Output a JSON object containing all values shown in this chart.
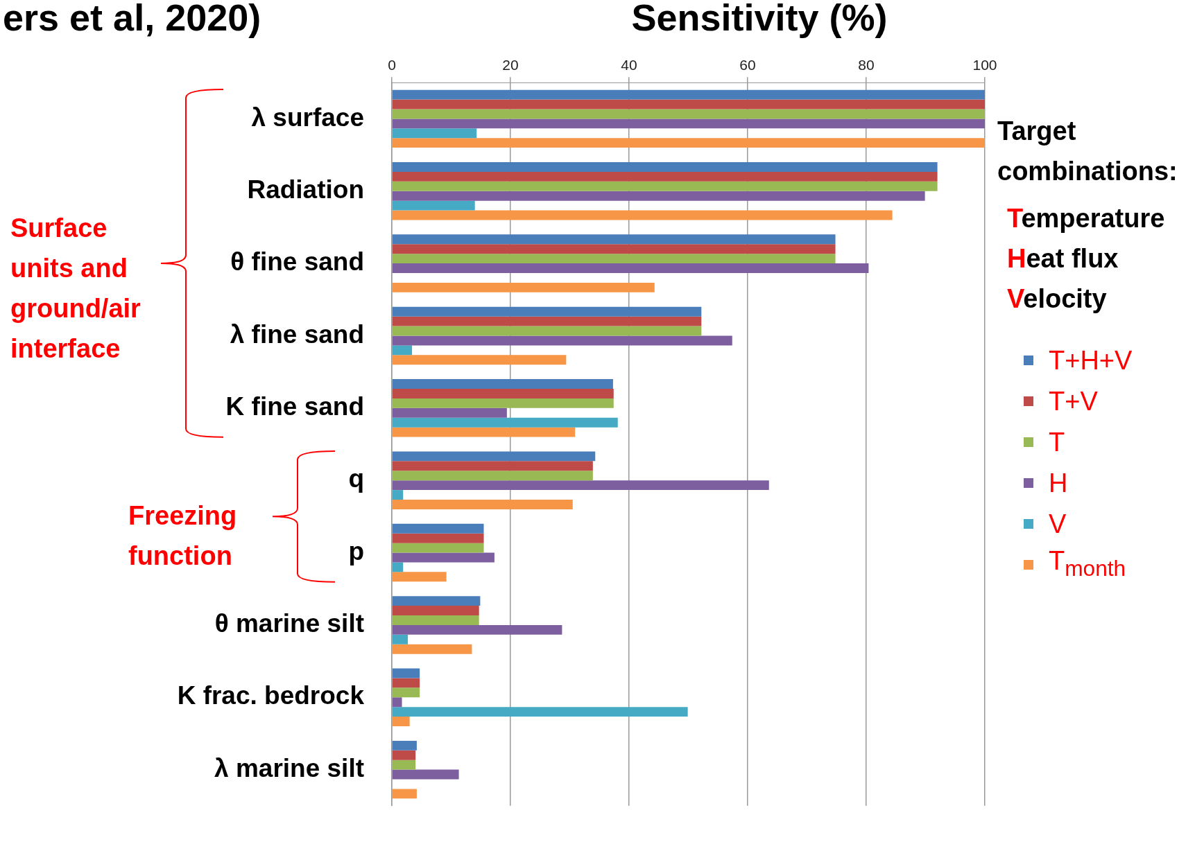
{
  "chart_data": {
    "type": "bar",
    "orientation": "horizontal",
    "title": "Sensitivity (%)",
    "legend_title": "Target combinations:",
    "legend": "right",
    "grid": "x",
    "categories": [
      "λ surface",
      "Radiation",
      "θ fine sand",
      "λ fine sand",
      "K fine sand",
      "q",
      "p",
      "θ marine silt",
      "K frac. bedrock",
      "λ marine silt"
    ],
    "xlim": [
      0,
      100
    ],
    "xticks": [
      0,
      20,
      40,
      60,
      80,
      100
    ],
    "series": [
      {
        "name": "T+H+V",
        "color": "#4a7ebb",
        "values": [
          100,
          92,
          74.8,
          52.2,
          37.3,
          34.3,
          15.5,
          14.9,
          4.7,
          4.2
        ]
      },
      {
        "name": "T+V",
        "color": "#be4b48",
        "values": [
          100,
          92,
          74.8,
          52.2,
          37.4,
          33.9,
          15.5,
          14.7,
          4.7,
          4.0
        ]
      },
      {
        "name": "T",
        "color": "#98b954",
        "values": [
          100,
          92,
          74.8,
          52.2,
          37.4,
          33.9,
          15.5,
          14.7,
          4.7,
          4.0
        ]
      },
      {
        "name": "H",
        "color": "#7d5fa0",
        "values": [
          100,
          89.9,
          80.4,
          57.4,
          19.4,
          63.6,
          17.3,
          28.7,
          1.7,
          11.3
        ]
      },
      {
        "name": "V",
        "color": "#46aac5",
        "values": [
          14.3,
          14,
          null,
          3.4,
          38.1,
          1.9,
          1.9,
          2.7,
          49.9,
          null
        ]
      },
      {
        "name": "T$_{month}$",
        "color": "#f79646",
        "values": [
          100,
          84.4,
          44.3,
          29.4,
          30.9,
          30.5,
          9.2,
          13.5,
          3.0,
          4.2
        ]
      }
    ],
    "annotations": [
      "ers et al, 2020)",
      "Surface units and ground/air interface",
      "Freezing function",
      "Temperature",
      "Heat flux",
      "Velocity"
    ]
  }
}
